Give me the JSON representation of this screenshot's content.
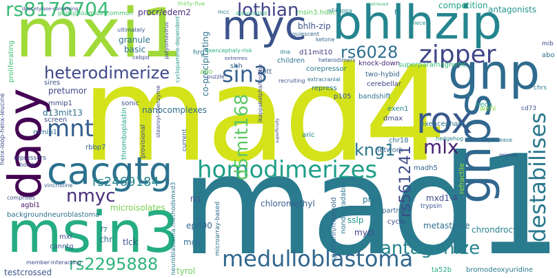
{
  "words": [
    {
      "text": "mad4",
      "color": "#d4e21a"
    },
    {
      "text": "mad1",
      "color": "#2a7b8e"
    },
    {
      "text": "mxi1",
      "color": "#a0da39"
    },
    {
      "text": "bhlhzip",
      "color": "#25858e"
    },
    {
      "text": "gnp",
      "color": "#2f6b8e"
    },
    {
      "text": "msin3",
      "color": "#25ac82"
    },
    {
      "text": "daoy",
      "color": "#440154"
    },
    {
      "text": "myc",
      "color": "#3b528b"
    },
    {
      "text": "gnps",
      "color": "#31688e"
    },
    {
      "text": "cacgtg",
      "color": "#2c728e"
    },
    {
      "text": "rox",
      "color": "#38598c"
    },
    {
      "text": "homodimerizes",
      "color": "#1f9e89"
    },
    {
      "text": "destabilises",
      "color": "#2a788e"
    },
    {
      "text": "medulloblastoma",
      "color": "#31678e"
    },
    {
      "text": "zipper",
      "color": "#3f4788"
    },
    {
      "text": "rs8176704",
      "color": "#3aba76"
    },
    {
      "text": "sin3",
      "color": "#34618d"
    },
    {
      "text": "mnt",
      "color": "#355e8d"
    },
    {
      "text": "nmyc",
      "color": "#472d7b"
    },
    {
      "text": "rs6028",
      "color": "#2d708e"
    },
    {
      "text": "lothian",
      "color": "#414487"
    },
    {
      "text": "heterodimerize",
      "color": "#3e4989"
    },
    {
      "text": "d5mit168",
      "color": "#5cc863"
    },
    {
      "text": "kng1",
      "color": "#2a768e"
    },
    {
      "text": "mlx",
      "color": "#482475"
    },
    {
      "text": "antagonize",
      "color": "#25838e"
    },
    {
      "text": "rs2295888",
      "color": "#2eb37c"
    },
    {
      "text": "rs2469184",
      "color": "#24868e"
    },
    {
      "text": "rs561241",
      "color": "#3e4a89"
    },
    {
      "text": "msin3.hdac",
      "color": "#5ec962"
    },
    {
      "text": "competition",
      "color": "#1fa187"
    },
    {
      "text": "antagonists",
      "color": "#20928c"
    },
    {
      "text": "retrieved",
      "color": "#38b977"
    },
    {
      "text": "f5",
      "color": "#26818e"
    },
    {
      "text": "piece",
      "color": "#21918c"
    },
    {
      "text": "mcc",
      "color": "#2a788e"
    },
    {
      "text": "dissociated",
      "color": "#2db27d"
    },
    {
      "text": "nf-kappa",
      "color": "#26828e"
    },
    {
      "text": "thirty-five",
      "color": "#6ece58"
    },
    {
      "text": "procr/edem2",
      "color": "#462f7c"
    },
    {
      "text": "bhlh-zip",
      "color": "#3b528b"
    },
    {
      "text": "quiescent",
      "color": "#33638d"
    },
    {
      "text": "ketone",
      "color": "#31688e"
    },
    {
      "text": "co-precipitating",
      "color": "#2d708e"
    },
    {
      "text": "cyclopamine-dependent",
      "color": "#1f958b"
    },
    {
      "text": "polyomavirus",
      "color": "#3f4889"
    },
    {
      "text": "ultimately",
      "color": "#39558c"
    },
    {
      "text": "granule",
      "color": "#2c718e"
    },
    {
      "text": "basic",
      "color": "#2e6e8e"
    },
    {
      "text": "cebpd",
      "color": "#3c508b"
    },
    {
      "text": "exencephaly-risk",
      "color": "#25ac82"
    },
    {
      "text": "hrg",
      "color": "#2a788e"
    },
    {
      "text": "shh",
      "color": "#34618d"
    },
    {
      "text": "extremes",
      "color": "#3b528b"
    },
    {
      "text": "d11mit10",
      "color": "#46327e"
    },
    {
      "text": "dna",
      "color": "#27808e"
    },
    {
      "text": "children",
      "color": "#2c728e"
    },
    {
      "text": "heterodimers",
      "color": "#39568c"
    },
    {
      "text": "corepressor",
      "color": "#2a778e"
    },
    {
      "text": "knock-down",
      "color": "#482878"
    },
    {
      "text": "superparamagnetic",
      "color": "#3bbb75"
    },
    {
      "text": "two-hybid",
      "color": "#34618d"
    },
    {
      "text": "repress",
      "color": "#2e6e8e"
    },
    {
      "text": "aptt",
      "color": "#37598c"
    },
    {
      "text": "extracranial",
      "color": "#2c728e"
    },
    {
      "text": "recruiting",
      "color": "#39558c"
    },
    {
      "text": "puzzle",
      "color": "#3e4a89"
    },
    {
      "text": "ado",
      "color": "#73d056"
    },
    {
      "text": "cerebellar",
      "color": "#414487"
    },
    {
      "text": "bandshift",
      "color": "#2c738e"
    },
    {
      "text": "p105",
      "color": "#3a548c"
    },
    {
      "text": "exen1",
      "color": "#26828e"
    },
    {
      "text": "neca",
      "color": "#21a685"
    },
    {
      "text": "exencephalic",
      "color": "#2b758e"
    },
    {
      "text": "wehi",
      "color": "#86d549"
    },
    {
      "text": "cd73",
      "color": "#3c4f8a"
    },
    {
      "text": "dmax",
      "color": "#3f4788"
    },
    {
      "text": "chrs",
      "color": "#29798e"
    },
    {
      "text": "nanocomplexes",
      "color": "#2e6d8e"
    },
    {
      "text": "thromboplastin",
      "color": "#22a785"
    },
    {
      "text": "aric",
      "color": "#25848e"
    },
    {
      "text": "network",
      "color": "#34618d"
    },
    {
      "text": "chr18",
      "color": "#2e6e8e"
    },
    {
      "text": "hedgehog",
      "color": "#26828e"
    },
    {
      "text": "protease",
      "color": "#2a788e"
    },
    {
      "text": "madh5",
      "color": "#32648e"
    },
    {
      "text": "micros",
      "color": "#3e4989"
    },
    {
      "text": "pretumor",
      "color": "#3f4788"
    },
    {
      "text": "sires",
      "color": "#3a538b"
    },
    {
      "text": "mmip1",
      "color": "#404688"
    },
    {
      "text": "d13mit13",
      "color": "#2e6f8e"
    },
    {
      "text": "screen",
      "color": "#3c508b"
    },
    {
      "text": "sonic",
      "color": "#3b528b"
    },
    {
      "text": "mmip1",
      "color": "#2f6c8e"
    },
    {
      "text": "rbbp7",
      "color": "#33638d"
    },
    {
      "text": "provisional",
      "color": "#3e4a89"
    },
    {
      "text": "current",
      "color": "#38598c"
    },
    {
      "text": "repressors",
      "color": "#3f4889"
    },
    {
      "text": "bomb",
      "color": "#3e4989"
    },
    {
      "text": "vincristine",
      "color": "#35608d"
    },
    {
      "text": "agbl1",
      "color": "#471164"
    },
    {
      "text": "comprises",
      "color": "#3b528b"
    },
    {
      "text": "backgroundneuroblastoma",
      "color": "#2e6d8e"
    },
    {
      "text": "microisolates",
      "color": "#7ad151"
    },
    {
      "text": "f11",
      "color": "#3e4a89"
    },
    {
      "text": "ep400",
      "color": "#32658e"
    },
    {
      "text": "chloromethyl",
      "color": "#355f8d"
    },
    {
      "text": "preb",
      "color": "#2a768e"
    },
    {
      "text": "partners",
      "color": "#32648e"
    },
    {
      "text": "mxd1-4",
      "color": "#3e4a89"
    },
    {
      "text": "trypsin",
      "color": "#3a538b"
    },
    {
      "text": "cycle",
      "color": "#3f4788"
    },
    {
      "text": "mycl",
      "color": "#414487"
    },
    {
      "text": "sslp",
      "color": "#1f9a8a"
    },
    {
      "text": "metastable",
      "color": "#2d708e"
    },
    {
      "text": "chrondrocyte",
      "color": "#277f8e"
    },
    {
      "text": "bromodeoxyuridine",
      "color": "#2a788e"
    },
    {
      "text": "ta52b",
      "color": "#22a884"
    },
    {
      "text": "nondegradable",
      "color": "#2b758e"
    },
    {
      "text": "mga",
      "color": "#2e6f8e"
    },
    {
      "text": "tlck",
      "color": "#3b528b"
    },
    {
      "text": "chr",
      "color": "#2c728e"
    },
    {
      "text": "mxi",
      "color": "#3e4a89"
    },
    {
      "text": "canntg",
      "color": "#3a548c"
    },
    {
      "text": "tyrol",
      "color": "#6ccd5a"
    },
    {
      "text": "testcrossed",
      "color": "#3b528b"
    },
    {
      "text": "member-interacting",
      "color": "#3e4a89"
    },
    {
      "text": "helix-loop-helix-leucine",
      "color": "#3e4a89"
    },
    {
      "text": "proliferating",
      "color": "#3fbc73"
    },
    {
      "text": "deacetylase-containing",
      "color": "#3e4a89"
    },
    {
      "text": "phosphoamide-common",
      "color": "#45bf6f"
    },
    {
      "text": "stearoyl-coenzyme",
      "color": "#3e4a89"
    },
    {
      "text": "superficially",
      "color": "#3e4a89"
    },
    {
      "text": "microarray-based",
      "color": "#2e6e8e"
    },
    {
      "text": "spemann/mangold",
      "color": "#33638d"
    },
    {
      "text": "refractile",
      "color": "#a5db36"
    },
    {
      "text": "ikappabalpha/bombo",
      "color": "#3e4a89"
    },
    {
      "text": "neuroblastoma.methodsmxd3",
      "color": "#2a788e"
    },
    {
      "text": "f7",
      "color": "#2e6e8e"
    },
    {
      "text": "mib",
      "color": "#3e4a89"
    },
    {
      "text": "abo",
      "color": "#2e6e8e"
    }
  ]
}
